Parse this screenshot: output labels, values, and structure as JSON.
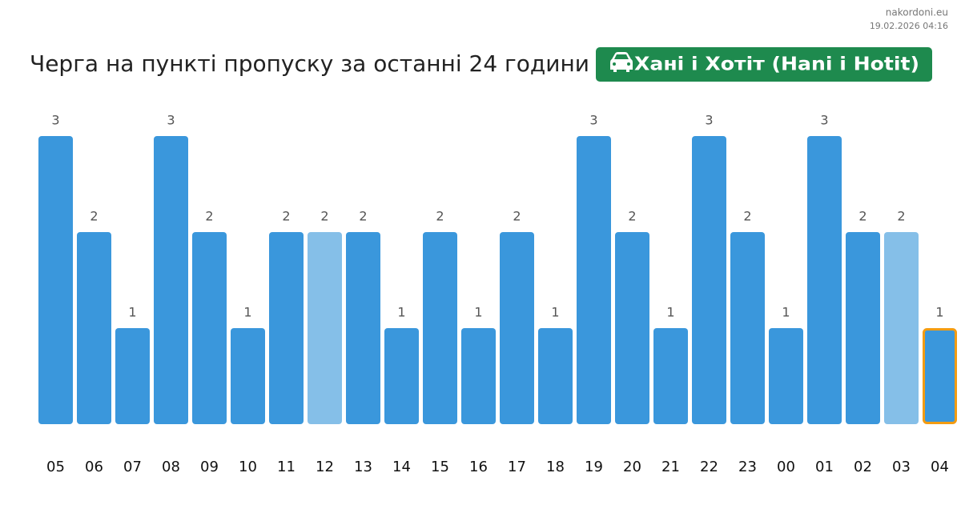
{
  "header": {
    "site": "nakordoni.eu",
    "timestamp": "19.02.2026 04:16"
  },
  "checkpoint": {
    "name": "Хані і Хотіт (Hani i Hotit)",
    "color": "#1e8a4e"
  },
  "chart_data": {
    "type": "bar",
    "title": "Черга на пункті пропуску за останні 24 години",
    "categories": [
      "05",
      "06",
      "07",
      "08",
      "09",
      "10",
      "11",
      "12",
      "13",
      "14",
      "15",
      "16",
      "17",
      "18",
      "19",
      "20",
      "21",
      "22",
      "23",
      "00",
      "01",
      "02",
      "03",
      "04"
    ],
    "values": [
      3,
      2,
      1,
      3,
      2,
      1,
      2,
      2,
      2,
      1,
      2,
      1,
      2,
      1,
      3,
      2,
      1,
      3,
      2,
      1,
      3,
      2,
      2,
      1
    ],
    "colors": [
      "#3a97dc",
      "#3a97dc",
      "#3a97dc",
      "#3a97dc",
      "#3a97dc",
      "#3a97dc",
      "#3a97dc",
      "#85bfe8",
      "#3a97dc",
      "#3a97dc",
      "#3a97dc",
      "#3a97dc",
      "#3a97dc",
      "#3a97dc",
      "#3a97dc",
      "#3a97dc",
      "#3a97dc",
      "#3a97dc",
      "#3a97dc",
      "#3a97dc",
      "#3a97dc",
      "#3a97dc",
      "#85bfe8",
      "#3a97dc"
    ],
    "outline_colors": [
      null,
      null,
      null,
      null,
      null,
      null,
      null,
      null,
      null,
      null,
      null,
      null,
      null,
      null,
      null,
      null,
      null,
      null,
      null,
      null,
      null,
      null,
      null,
      "#f39c12"
    ]
  }
}
